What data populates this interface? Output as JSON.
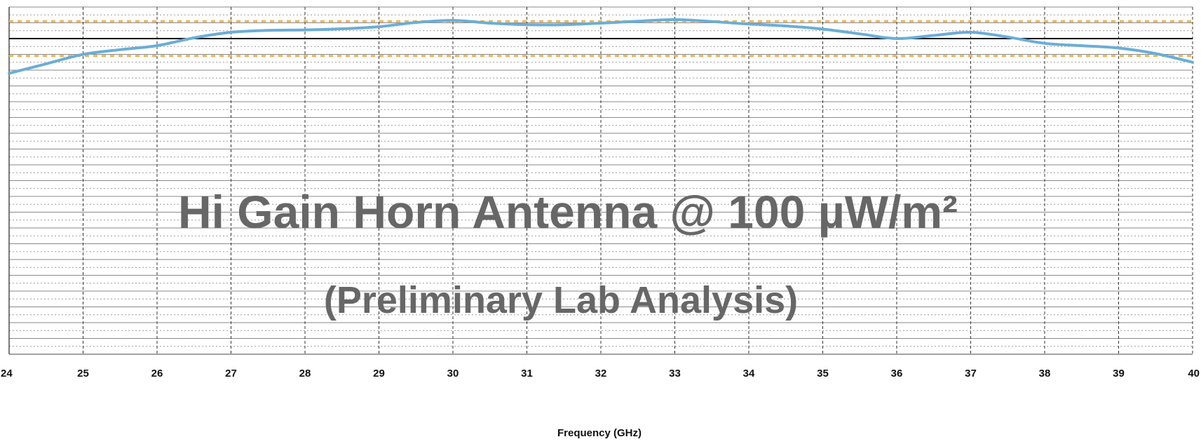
{
  "chart_data": {
    "type": "line",
    "title": "Hi Gain Horn Antenna @ 100 µW/m²",
    "subtitle": "(Preliminary Lab Analysis)",
    "xlabel": "Frequency (GHz)",
    "ylabel": "",
    "xlim": [
      24,
      40
    ],
    "x_ticks": [
      "24",
      "25",
      "26",
      "27",
      "28",
      "29",
      "30",
      "31",
      "32",
      "33",
      "34",
      "35",
      "36",
      "37",
      "38",
      "39",
      "40"
    ],
    "grid": true,
    "y_rows": 22,
    "y_top": 0,
    "y_bottom": 22,
    "reference_line_y": 2,
    "limit_lines_y": [
      0.9,
      3.1
    ],
    "colors": {
      "series": "#6aaed6",
      "limit": "#f0b449",
      "reference": "#111111",
      "grid": "#777777",
      "title": "#676767"
    },
    "series": [
      {
        "x": [
          24,
          24.5,
          25,
          25.5,
          26,
          26.5,
          27,
          27.5,
          28,
          28.5,
          29,
          29.5,
          30,
          30.5,
          31,
          31.5,
          32,
          32.5,
          33,
          33.5,
          34,
          34.5,
          35,
          35.5,
          36,
          36.5,
          37,
          37.5,
          38,
          38.5,
          39,
          39.5,
          40
        ],
        "y": [
          4.2,
          3.6,
          3.0,
          2.7,
          2.45,
          1.95,
          1.6,
          1.48,
          1.45,
          1.38,
          1.25,
          0.98,
          0.85,
          1.02,
          1.12,
          1.12,
          1.02,
          0.9,
          0.8,
          0.92,
          1.08,
          1.2,
          1.4,
          1.7,
          2.0,
          1.8,
          1.6,
          1.9,
          2.3,
          2.45,
          2.6,
          2.95,
          3.5
        ]
      }
    ]
  }
}
